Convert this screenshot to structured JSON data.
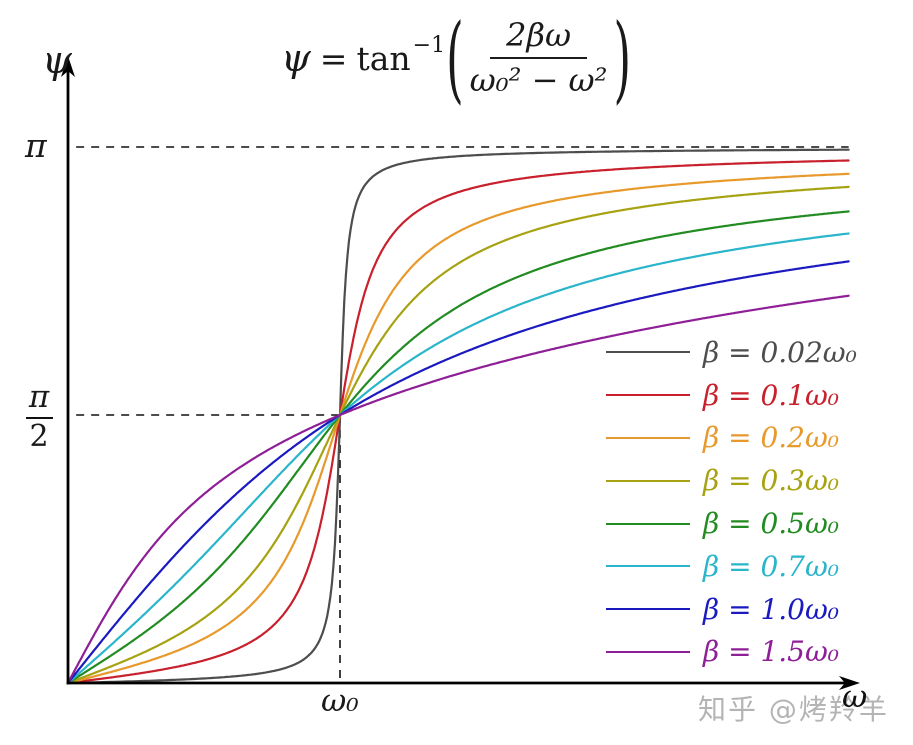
{
  "title": {
    "psi": "ψ",
    "equals": "=",
    "func": "tan",
    "exponent": "−1",
    "paren_open": "(",
    "paren_close": ")",
    "numerator": "2βω",
    "denominator": "ω₀² − ω²"
  },
  "axes": {
    "y_label": "ψ",
    "x_label": "ω",
    "y_tick_pi": "π",
    "y_tick_pi_half_num": "π",
    "y_tick_pi_half_den": "2",
    "x_tick_omega0": "ω₀"
  },
  "watermark": "知乎 @烤羚羊",
  "chart_data": {
    "type": "line",
    "title": "ψ = tan⁻¹( 2βω / (ω₀² − ω²) )",
    "xlabel": "ω",
    "ylabel": "ψ",
    "function": "psi(omega) = atan2(2*beta*omega, omega0^2 - omega^2), omega in units of omega0",
    "xlim": [
      0,
      2.95
    ],
    "ylim": [
      0,
      3.6
    ],
    "x_plot_max": 2.87,
    "x_ticks": [
      {
        "value": 1.0,
        "label": "ω₀"
      }
    ],
    "y_ticks": [
      {
        "value": 1.5708,
        "label": "π/2"
      },
      {
        "value": 3.1416,
        "label": "π"
      }
    ],
    "dashed_guides": [
      {
        "name": "pi-level",
        "y": 3.1416,
        "x_from": 0.03,
        "x_to": 2.87
      },
      {
        "name": "pi-half-level",
        "y": 1.5708,
        "x_from": 0.03,
        "x_to": 1.0
      },
      {
        "name": "omega0-vertical",
        "x": 1.0,
        "y_from": 0.0,
        "y_to": 1.5708
      }
    ],
    "crossing_point": {
      "omega": 1.0,
      "psi": 1.5708
    },
    "grid": false,
    "legend_position": "center-right",
    "series": [
      {
        "label": "β = 0.02ω₀",
        "beta": 0.02,
        "color": "#4d4d4d"
      },
      {
        "label": "β = 0.1ω₀",
        "beta": 0.1,
        "color": "#c8202c"
      },
      {
        "label": "β = 0.2ω₀",
        "beta": 0.2,
        "color": "#e8992b"
      },
      {
        "label": "β = 0.3ω₀",
        "beta": 0.3,
        "color": "#a6a211"
      },
      {
        "label": "β = 0.5ω₀",
        "beta": 0.5,
        "color": "#228b22"
      },
      {
        "label": "β = 0.7ω₀",
        "beta": 0.7,
        "color": "#2ab5cb"
      },
      {
        "label": "β = 1.0ω₀",
        "beta": 1.0,
        "color": "#1a1ac0"
      },
      {
        "label": "β = 1.5ω₀",
        "beta": 1.5,
        "color": "#8e1f96"
      }
    ]
  }
}
